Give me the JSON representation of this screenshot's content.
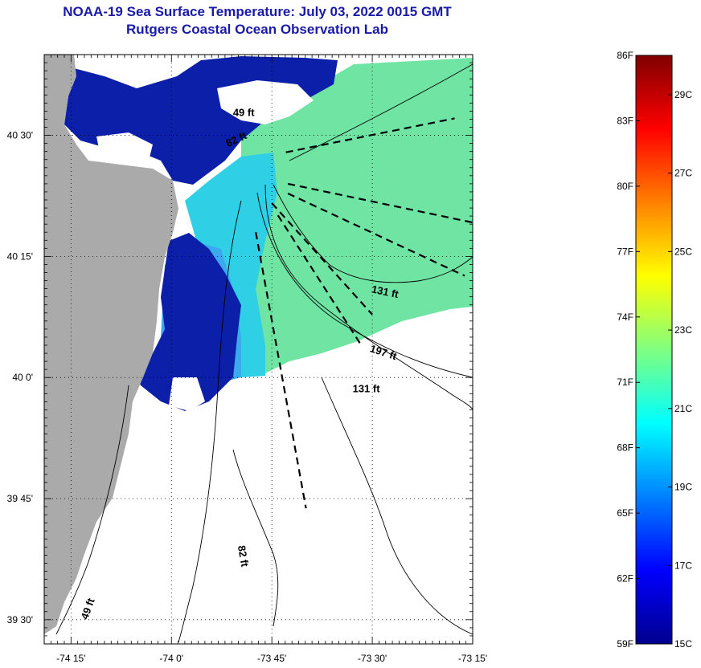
{
  "title": {
    "line1": "NOAA-19 Sea Surface Temperature:  July 03, 2022 0015 GMT",
    "line2": "Rutgers Coastal Ocean Observation Lab"
  },
  "map": {
    "lat_range": [
      39.45,
      40.6667
    ],
    "lon_range": [
      -74.3167,
      -73.25
    ],
    "lat_ticks": [
      {
        "value": 40.5,
        "label": "40 30'"
      },
      {
        "value": 40.25,
        "label": "40 15'"
      },
      {
        "value": 40.0,
        "label": "40 0'"
      },
      {
        "value": 39.75,
        "label": "39 45'"
      },
      {
        "value": 39.5,
        "label": "39 30'"
      }
    ],
    "lon_ticks": [
      {
        "value": -74.25,
        "label": "-74 15'"
      },
      {
        "value": -74.0,
        "label": "-74 0'"
      },
      {
        "value": -73.75,
        "label": "-73 45'"
      },
      {
        "value": -73.5,
        "label": "-73 30'"
      },
      {
        "value": -73.25,
        "label": "-73 15'"
      }
    ],
    "grid": "dotted",
    "colors": {
      "land": "#aaaaaa",
      "cold_sst": "#0b1fa8",
      "mid_sst": "#1d9ff0",
      "warm_sst": "#6ee6a0",
      "contour": "#000000"
    },
    "contour_labels": [
      {
        "text": "49 ft",
        "lon": -73.82,
        "lat": 40.54,
        "angle": 0
      },
      {
        "text": "82 ft",
        "lon": -73.835,
        "lat": 40.485,
        "angle": -25
      },
      {
        "text": "131 ft",
        "lon": -73.47,
        "lat": 40.17,
        "angle": 12
      },
      {
        "text": "197 ft",
        "lon": -73.475,
        "lat": 40.045,
        "angle": 18
      },
      {
        "text": "131 ft",
        "lon": -73.515,
        "lat": 39.97,
        "angle": 0
      },
      {
        "text": "82 ft",
        "lon": -73.83,
        "lat": 39.63,
        "angle": 80
      },
      {
        "text": "49 ft",
        "lon": -74.2,
        "lat": 39.52,
        "angle": -70
      }
    ],
    "transects": [
      [
        [
          -73.715,
          40.465
        ],
        [
          -73.295,
          40.535
        ]
      ],
      [
        [
          -73.71,
          40.4
        ],
        [
          -73.25,
          40.32
        ]
      ],
      [
        [
          -73.71,
          40.38
        ],
        [
          -73.27,
          40.21
        ]
      ],
      [
        [
          -73.75,
          40.36
        ],
        [
          -73.5,
          40.13
        ]
      ],
      [
        [
          -73.735,
          40.335
        ],
        [
          -73.53,
          40.07
        ]
      ],
      [
        [
          -73.79,
          40.3
        ],
        [
          -73.665,
          39.73
        ]
      ]
    ]
  },
  "colorbar": {
    "fahrenheit_labels": [
      "86F",
      "83F",
      "80F",
      "77F",
      "74F",
      "71F",
      "68F",
      "65F",
      "62F",
      "59F"
    ],
    "celsius_labels": [
      {
        "label": "29C",
        "value": 29
      },
      {
        "label": "27C",
        "value": 27
      },
      {
        "label": "25C",
        "value": 25
      },
      {
        "label": "23C",
        "value": 23
      },
      {
        "label": "21C",
        "value": 21
      },
      {
        "label": "19C",
        "value": 19
      },
      {
        "label": "17C",
        "value": 17
      },
      {
        "label": "15C",
        "value": 15
      }
    ],
    "min_f": 59,
    "max_f": 86,
    "colors": [
      "#00008f",
      "#0000ff",
      "#0080ff",
      "#00ffff",
      "#80ff80",
      "#ffff00",
      "#ff8000",
      "#ff0000",
      "#800000"
    ]
  }
}
